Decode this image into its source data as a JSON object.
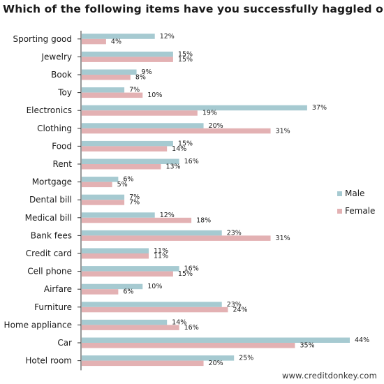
{
  "chart_data": {
    "type": "bar",
    "orientation": "horizontal",
    "title": "Which of the following items have you successfully haggled on?",
    "categories": [
      "Sporting  good",
      "Jewelry",
      "Book",
      "Toy",
      "Electronics",
      "Clothing",
      "Food",
      "Rent",
      "Mortgage",
      "Dental bill",
      "Medical bill",
      "Bank fees",
      "Credit card",
      "Cell phone",
      "Airfare",
      "Furniture",
      "Home appliance",
      "Car",
      "Hotel room"
    ],
    "series": [
      {
        "name": "Male",
        "color": "#a6cad1",
        "values": [
          12,
          15,
          9,
          7,
          37,
          20,
          15,
          16,
          6,
          7,
          12,
          23,
          11,
          16,
          10,
          23,
          14,
          44,
          25
        ]
      },
      {
        "name": "Female",
        "color": "#e3b1b3",
        "values": [
          4,
          15,
          8,
          10,
          19,
          31,
          14,
          13,
          5,
          7,
          18,
          31,
          11,
          15,
          6,
          24,
          16,
          35,
          20
        ]
      }
    ],
    "value_suffix": "%",
    "xlim": [
      0,
      45
    ],
    "xlabel": "",
    "ylabel": "",
    "grid": false,
    "legend_position": "right"
  },
  "watermark": "www.creditdonkey.com"
}
